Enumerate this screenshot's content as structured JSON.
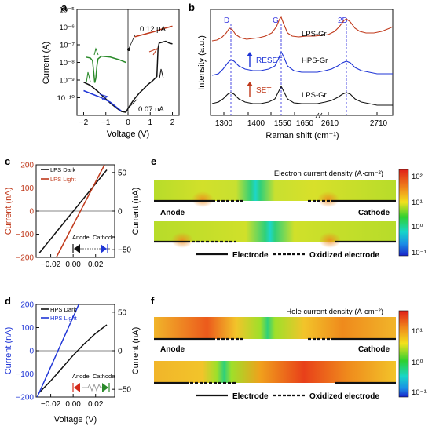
{
  "colors": {
    "black": "#111111",
    "red": "#c0391b",
    "blue": "#1f35d6",
    "green": "#2a8a2a",
    "dash_blue": "#3a3ae0"
  },
  "chart_data": [
    {
      "panel": "a",
      "type": "line",
      "xlabel": "Voltage (V)",
      "ylabel": "Current (A)",
      "xlim": [
        -2.3,
        2.3
      ],
      "ylim_log10": [
        -11,
        -5
      ],
      "log_y": true,
      "x_ticks": [
        "−2",
        "−1",
        "0",
        "1",
        "2"
      ],
      "x_tick_values": [
        -2,
        -1,
        0,
        1,
        2
      ],
      "y_ticks": [
        "10⁻¹⁰",
        "10⁻⁹",
        "10⁻⁸",
        "10⁻⁷",
        "10⁻⁶",
        "10⁻⁵"
      ],
      "y_tick_values": [
        -10,
        -9,
        -8,
        -7,
        -6,
        -5
      ],
      "annotations": [
        {
          "text": "0.12 μA",
          "x": 0,
          "y_log10": -6.92
        },
        {
          "text": "0.07 nA",
          "x": 0,
          "y_log10": -10.15
        }
      ],
      "series": [
        {
          "color": "#c0391b",
          "points": [
            [
              0.3,
              -6.55
            ],
            [
              0.6,
              -6.45
            ],
            [
              0.9,
              -6.35
            ],
            [
              1.2,
              -6.25
            ],
            [
              1.5,
              -6.12
            ],
            [
              1.8,
              -6.02
            ],
            [
              2.0,
              -5.95
            ]
          ]
        },
        {
          "color": "#111111",
          "points": [
            [
              -2,
              -9.12
            ],
            [
              -1.7,
              -9.3
            ],
            [
              -1.4,
              -9.6
            ],
            [
              -1.1,
              -9.95
            ],
            [
              -0.8,
              -10.3
            ],
            [
              -0.5,
              -10.6
            ],
            [
              -0.3,
              -10.78
            ],
            [
              -0.1,
              -10.82
            ],
            [
              0.1,
              -10.4
            ],
            [
              0.3,
              -10.05
            ],
            [
              0.5,
              -9.75
            ],
            [
              0.7,
              -9.5
            ],
            [
              0.9,
              -9.25
            ],
            [
              1.1,
              -9.05
            ],
            [
              1.3,
              -8.8
            ],
            [
              1.35,
              -7.2
            ],
            [
              1.4,
              -6.9
            ],
            [
              1.55,
              -6.85
            ],
            [
              1.7,
              -6.8
            ],
            [
              1.85,
              -6.9
            ],
            [
              2.0,
              -6.95
            ]
          ]
        },
        {
          "color": "#2a8a2a",
          "points": [
            [
              -0.1,
              -8.0
            ],
            [
              -0.4,
              -7.85
            ],
            [
              -0.8,
              -7.7
            ],
            [
              -1.2,
              -7.65
            ],
            [
              -1.35,
              -7.8
            ],
            [
              -1.4,
              -8.2
            ],
            [
              -1.45,
              -8.9
            ],
            [
              -1.5,
              -9.15
            ],
            [
              -1.55,
              -8.5
            ],
            [
              -1.6,
              -7.9
            ],
            [
              -1.7,
              -7.75
            ],
            [
              -1.9,
              -7.7
            ]
          ]
        },
        {
          "color": "#1f35d6",
          "points": [
            [
              -2,
              -9.6
            ],
            [
              -1.6,
              -9.8
            ],
            [
              -1.2,
              -10.0
            ],
            [
              -0.8,
              -10.25
            ],
            [
              -0.5,
              -10.55
            ],
            [
              -0.3,
              -10.75
            ]
          ]
        }
      ]
    },
    {
      "panel": "b",
      "type": "line",
      "xlabel": "Raman shift (cm⁻¹)",
      "ylabel": "Intensity (a.u.)",
      "x_ticks": [
        "1300",
        "1400",
        "1550",
        "1650",
        "2610",
        "2710"
      ],
      "peak_labels": [
        "D",
        "G",
        "2D"
      ],
      "trace_labels": [
        "LPS-Gr",
        "HPS-Gr",
        "LPS-Gr"
      ],
      "arrow_labels": [
        "RESET",
        "SET"
      ]
    },
    {
      "panel": "c",
      "type": "line",
      "xlabel": "",
      "ylabel_left": "Current (nA)",
      "ylabel_right": "Current (nA)",
      "xlim": [
        -0.033,
        0.037
      ],
      "ylim_left": [
        -200,
        200
      ],
      "ylim_right": [
        -60,
        60
      ],
      "x_ticks": [
        "−0.02",
        "0.00",
        "0.02"
      ],
      "x_tick_values": [
        -0.02,
        0.0,
        0.02
      ],
      "y_left_ticks": [
        "−200",
        "−100",
        "0",
        "100",
        "200"
      ],
      "y_left_values": [
        -200,
        -100,
        0,
        100,
        200
      ],
      "y_right_ticks": [
        "−50",
        "0",
        "50"
      ],
      "y_right_values": [
        -50,
        0,
        50
      ],
      "legend": [
        "LPS Dark",
        "LPS Light"
      ],
      "inset_labels": [
        "Anode",
        "Cathode"
      ],
      "series": [
        {
          "name": "LPS Dark",
          "color": "#111111",
          "axis": "left",
          "x": [
            -0.03,
            0.03
          ],
          "y": [
            -180,
            178
          ]
        },
        {
          "name": "LPS Light",
          "color": "#c0391b",
          "axis": "right",
          "x": [
            -0.015,
            0.028
          ],
          "y": [
            -60,
            60
          ]
        }
      ]
    },
    {
      "panel": "d",
      "type": "line",
      "xlabel": "Voltage (V)",
      "ylabel_left": "Current (nA)",
      "ylabel_right": "Current (nA)",
      "xlim": [
        -0.033,
        0.037
      ],
      "ylim_left": [
        -200,
        200
      ],
      "ylim_right": [
        -60,
        60
      ],
      "x_ticks": [
        "−0.02",
        "0.00",
        "0.02"
      ],
      "x_tick_values": [
        -0.02,
        0.0,
        0.02
      ],
      "y_left_ticks": [
        "−200",
        "−100",
        "0",
        "100",
        "200"
      ],
      "y_left_values": [
        -200,
        -100,
        0,
        100,
        200
      ],
      "y_right_ticks": [
        "−50",
        "0",
        "50"
      ],
      "y_right_values": [
        -50,
        0,
        50
      ],
      "legend": [
        "HPS Dark",
        "HPS Light"
      ],
      "inset_labels": [
        "Anode",
        "Cathode"
      ],
      "series": [
        {
          "name": "HPS Dark",
          "color": "#111111",
          "axis": "left",
          "x": [
            -0.03,
            -0.02,
            -0.01,
            0.0,
            0.01,
            0.02,
            0.03
          ],
          "y": [
            -180,
            -130,
            -75,
            -20,
            30,
            75,
            112
          ]
        },
        {
          "name": "HPS Light",
          "color": "#1f35d6",
          "axis": "right",
          "x": [
            -0.032,
            0.005
          ],
          "y": [
            -60,
            60
          ]
        }
      ]
    },
    {
      "panel": "e",
      "type": "heatmap",
      "title": "Electron current density (A·cm⁻²)",
      "colorbar_ticks": [
        "10²",
        "10¹",
        "10⁰",
        "10⁻¹"
      ],
      "side_labels": [
        "Anode",
        "Cathode"
      ],
      "legend": [
        "Electrode",
        "Oxidized electrode"
      ]
    },
    {
      "panel": "f",
      "type": "heatmap",
      "title": "Hole current density (A·cm⁻²)",
      "colorbar_ticks": [
        "10¹",
        "10⁰",
        "10⁻¹"
      ],
      "side_labels": [
        "Anode",
        "Cathode"
      ],
      "legend": [
        "Electrode",
        "Oxidized electrode"
      ]
    }
  ]
}
